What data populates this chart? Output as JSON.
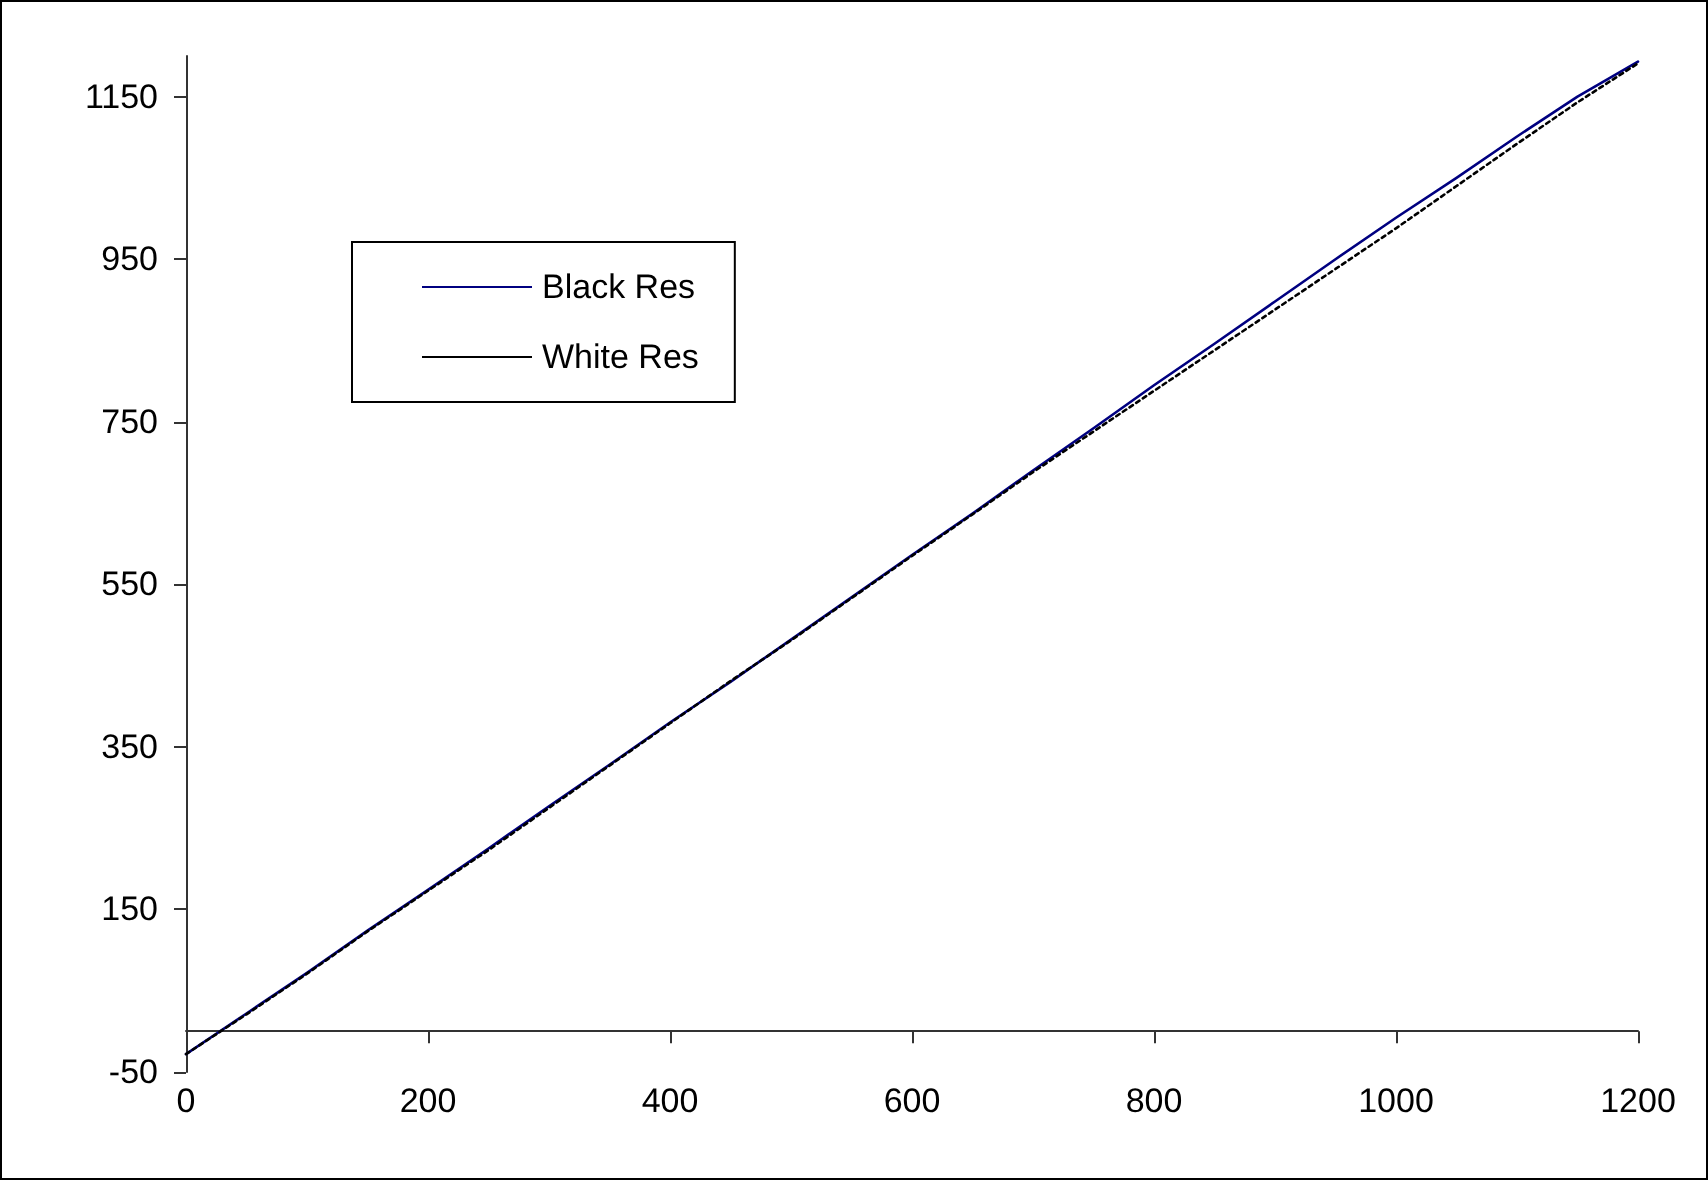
{
  "chart_data": {
    "type": "line",
    "x": [
      0,
      50,
      100,
      150,
      200,
      250,
      300,
      350,
      400,
      450,
      500,
      550,
      600,
      650,
      700,
      750,
      800,
      850,
      900,
      950,
      1000,
      1050,
      1100,
      1150,
      1200
    ],
    "series": [
      {
        "name": "Black Res",
        "color": "#000080",
        "line_style": "solid",
        "values": [
          -28,
          22,
          72,
          124,
          174,
          225,
          277,
          328,
          380,
          430,
          482,
          534,
          586,
          637,
          690,
          742,
          795,
          846,
          898,
          950,
          1001,
          1050,
          1101,
          1150,
          1193
        ]
      },
      {
        "name": "White Res",
        "color": "#000000",
        "line_style": "dotted",
        "values": [
          -28,
          21,
          71,
          123,
          173,
          223,
          275,
          327,
          379,
          431,
          481,
          533,
          585,
          636,
          688,
          738,
          788,
          838,
          888,
          938,
          988,
          1040,
          1092,
          1143,
          1191
        ]
      }
    ],
    "xlim": [
      0,
      1200
    ],
    "xticks": [
      0,
      200,
      400,
      600,
      800,
      1000,
      1200
    ],
    "ylim": [
      -50,
      1200
    ],
    "yticks": [
      -50,
      150,
      350,
      550,
      750,
      950,
      1150
    ],
    "grid": false,
    "legend": "top left",
    "marker": "none"
  }
}
